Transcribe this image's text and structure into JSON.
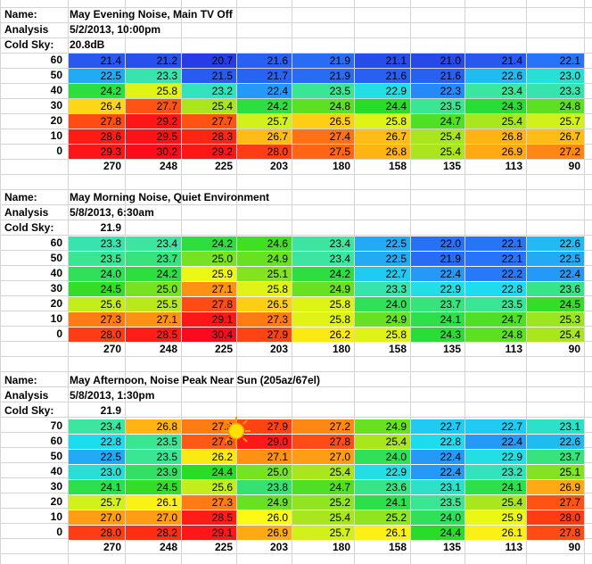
{
  "columns": [
    "270",
    "248",
    "225",
    "203",
    "180",
    "158",
    "135",
    "113",
    "90"
  ],
  "blocks": [
    {
      "name_label": "Name:",
      "name_value": "May Evening Noise, Main TV Off",
      "analysis_label": "Analysis",
      "analysis_value": "5/2/2013, 10:00pm",
      "coldsky_label": "Cold Sky:",
      "coldsky_value": "20.8dB",
      "rows": [
        {
          "el": "60",
          "values": [
            "21.4",
            "21.2",
            "20.7",
            "21.6",
            "21.9",
            "21.1",
            "21.0",
            "21.4",
            "22.1"
          ]
        },
        {
          "el": "50",
          "values": [
            "22.5",
            "23.3",
            "21.5",
            "21.7",
            "21.9",
            "21.6",
            "21.6",
            "22.6",
            "23.0"
          ]
        },
        {
          "el": "40",
          "values": [
            "24.2",
            "25.8",
            "23.2",
            "22.4",
            "23.5",
            "22.9",
            "22.3",
            "23.4",
            "23.3"
          ]
        },
        {
          "el": "30",
          "values": [
            "26.4",
            "27.7",
            "25.4",
            "24.2",
            "24.8",
            "24.4",
            "23.5",
            "24.3",
            "24.8"
          ]
        },
        {
          "el": "20",
          "values": [
            "27.8",
            "29.2",
            "27.7",
            "25.7",
            "26.5",
            "25.8",
            "24.7",
            "25.4",
            "25.7"
          ]
        },
        {
          "el": "10",
          "values": [
            "28.6",
            "29.5",
            "28.3",
            "26.7",
            "27.4",
            "26.7",
            "25.4",
            "26.8",
            "26.7"
          ]
        },
        {
          "el": "0",
          "values": [
            "29.3",
            "30.2",
            "29.2",
            "28.0",
            "27.5",
            "26.8",
            "25.4",
            "26.9",
            "27.2"
          ]
        }
      ]
    },
    {
      "name_label": "Name:",
      "name_value": "May Morning Noise, Quiet Environment",
      "analysis_label": "Analysis",
      "analysis_value": "5/8/2013, 6:30am",
      "coldsky_label": "Cold Sky:",
      "coldsky_value": "21.9",
      "rows": [
        {
          "el": "60",
          "values": [
            "23.3",
            "23.4",
            "24.2",
            "24.6",
            "23.4",
            "22.5",
            "22.0",
            "22.1",
            "22.6"
          ]
        },
        {
          "el": "50",
          "values": [
            "23.5",
            "23.7",
            "25.0",
            "24.9",
            "23.4",
            "22.5",
            "21.9",
            "22.1",
            "22.5"
          ]
        },
        {
          "el": "40",
          "values": [
            "24.0",
            "24.2",
            "25.9",
            "25.1",
            "24.2",
            "22.7",
            "22.4",
            "22.2",
            "22.4"
          ]
        },
        {
          "el": "30",
          "values": [
            "24.5",
            "25.0",
            "27.1",
            "25.8",
            "24.9",
            "23.3",
            "22.9",
            "22.8",
            "23.6"
          ]
        },
        {
          "el": "20",
          "values": [
            "25.6",
            "25.5",
            "27.8",
            "26.5",
            "25.8",
            "24.0",
            "23.7",
            "23.5",
            "24.5"
          ]
        },
        {
          "el": "10",
          "values": [
            "27.3",
            "27.1",
            "29.1",
            "27.3",
            "25.8",
            "24.9",
            "24.1",
            "24.7",
            "25.3"
          ]
        },
        {
          "el": "0",
          "values": [
            "28.0",
            "28.5",
            "30.4",
            "27.9",
            "26.2",
            "25.8",
            "24.3",
            "24.8",
            "25.4"
          ]
        }
      ]
    },
    {
      "name_label": "Name:",
      "name_value": "May Afternoon, Noise Peak Near Sun (205az/67el)",
      "analysis_label": "Analysis",
      "analysis_value": "5/8/2013, 1:30pm",
      "coldsky_label": "Cold Sky:",
      "coldsky_value": "21.9",
      "rows": [
        {
          "el": "70",
          "values": [
            "23.4",
            "26.8",
            "27.3",
            "27.9",
            "27.2",
            "24.9",
            "22.7",
            "22.7",
            "23.1"
          ]
        },
        {
          "el": "60",
          "values": [
            "22.8",
            "23.5",
            "27.6",
            "29.0",
            "27.8",
            "25.4",
            "22.8",
            "22.4",
            "22.6"
          ]
        },
        {
          "el": "50",
          "values": [
            "22.5",
            "23.5",
            "26.2",
            "27.1",
            "27.0",
            "24.0",
            "22.4",
            "22.9",
            "23.7"
          ]
        },
        {
          "el": "40",
          "values": [
            "23.0",
            "23.9",
            "24.4",
            "25.0",
            "25.4",
            "22.9",
            "22.4",
            "23.2",
            "25.1"
          ]
        },
        {
          "el": "30",
          "values": [
            "24.1",
            "24.5",
            "25.6",
            "23.8",
            "24.7",
            "23.6",
            "23.1",
            "24.1",
            "26.9"
          ]
        },
        {
          "el": "20",
          "values": [
            "25.7",
            "26.1",
            "27.3",
            "24.9",
            "25.2",
            "24.1",
            "23.5",
            "25.4",
            "27.7"
          ]
        },
        {
          "el": "10",
          "values": [
            "27.0",
            "27.0",
            "28.5",
            "26.0",
            "25.4",
            "25.2",
            "24.0",
            "25.9",
            "28.0"
          ]
        },
        {
          "el": "0",
          "values": [
            "28.0",
            "28.2",
            "29.1",
            "26.9",
            "25.7",
            "26.1",
            "24.4",
            "26.1",
            "27.8"
          ]
        }
      ]
    }
  ]
}
